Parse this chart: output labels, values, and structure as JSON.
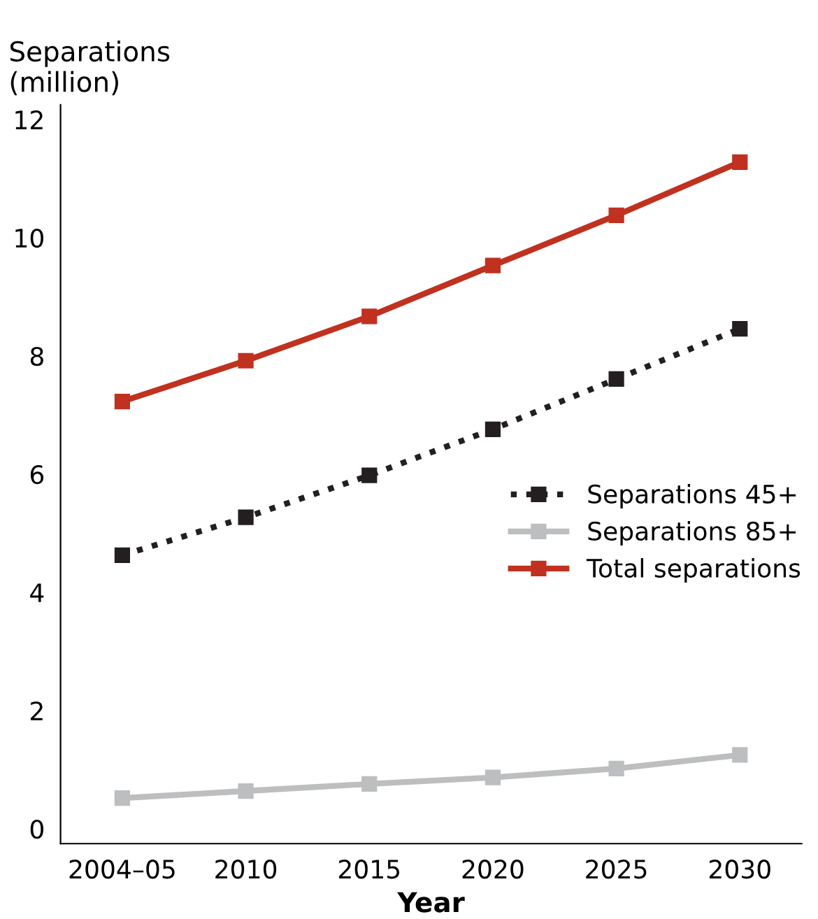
{
  "chart_data": {
    "type": "line",
    "ylabel": "Separations\n(million)",
    "xlabel": "Year",
    "categories": [
      "2004–05",
      "2010",
      "2015",
      "2020",
      "2025",
      "2030"
    ],
    "series": [
      {
        "name": "Separations 45+",
        "color": "#231f20",
        "line_style": "dotted",
        "values": [
          4.63,
          5.27,
          5.98,
          6.76,
          7.61,
          8.46
        ]
      },
      {
        "name": "Separations 85+",
        "color": "#bcbec0",
        "line_style": "solid",
        "values": [
          0.52,
          0.64,
          0.76,
          0.87,
          1.02,
          1.25
        ]
      },
      {
        "name": "Total separations",
        "color": "#c0311f",
        "line_style": "solid",
        "values": [
          7.23,
          7.92,
          8.67,
          9.53,
          10.38,
          11.28
        ]
      }
    ],
    "ylim": [
      -0.25,
      12.25
    ],
    "yticks": [
      0,
      2,
      4,
      6,
      8,
      10,
      12
    ],
    "marker": "square",
    "grid": false,
    "legend": "right"
  }
}
